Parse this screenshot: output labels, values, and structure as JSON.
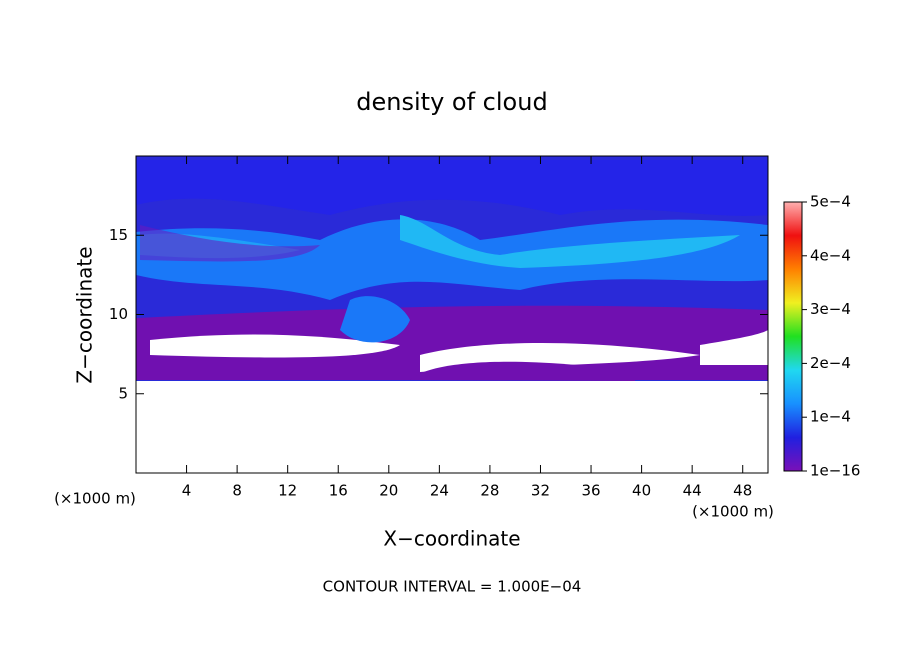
{
  "chart_data": {
    "type": "contour",
    "title": "density of cloud",
    "xlabel": "X−coordinate",
    "ylabel": "Z−coordinate",
    "x_unit": "(×1000 m)",
    "y_unit": "(×1000 m)",
    "annotation": "CONTOUR INTERVAL = 1.000E−04",
    "xlim": [
      0,
      50
    ],
    "xticks": [
      4,
      8,
      12,
      16,
      20,
      24,
      28,
      32,
      36,
      40,
      44,
      48
    ],
    "ylim": [
      0,
      20
    ],
    "yticks": [
      5,
      10,
      15
    ],
    "colorbar": {
      "lim": [
        1e-16,
        0.0005
      ],
      "ticks": [
        {
          "value": 1e-16,
          "label": "1e−16"
        },
        {
          "value": 0.0001,
          "label": "1e−4"
        },
        {
          "value": 0.0002,
          "label": "2e−4"
        },
        {
          "value": 0.0003,
          "label": "3e−4"
        },
        {
          "value": 0.0004,
          "label": "4e−4"
        },
        {
          "value": 0.0005,
          "label": "5e−4"
        }
      ],
      "colors": [
        "#7a10b8",
        "#2020e0",
        "#1890ff",
        "#20d8f0",
        "#20e020",
        "#f0f020",
        "#ff8000",
        "#f01010",
        "#ffb0b0"
      ]
    }
  }
}
